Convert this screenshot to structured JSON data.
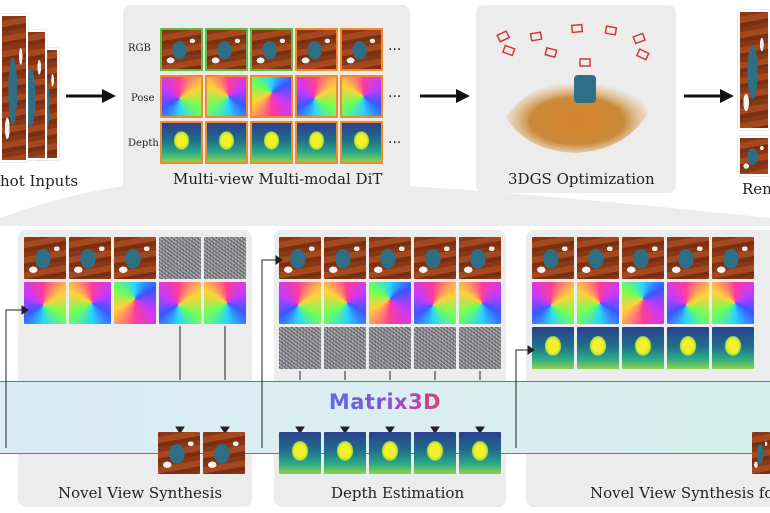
{
  "top": {
    "inputs_caption": "hot Inputs",
    "dit": {
      "caption": "Multi-view Multi-modal DiT",
      "row_labels": [
        "RGB",
        "Pose",
        "Depth"
      ],
      "ellipsis": "..."
    },
    "optimization_caption": "3DGS Optimization",
    "render_caption": "Ren"
  },
  "bottom": {
    "brand": "Matrix3D",
    "panels": [
      {
        "caption": "Novel View Synthesis"
      },
      {
        "caption": "Depth Estimation"
      },
      {
        "caption": "Novel View Synthesis for I"
      }
    ]
  },
  "colors": {
    "panel_bg": "#ececec",
    "rgb_border": "#5bbf3c",
    "output_border": "#f08a2a",
    "brand_gradient": [
      "#5b6fe0",
      "#8a4fd6",
      "#d6457a"
    ]
  }
}
